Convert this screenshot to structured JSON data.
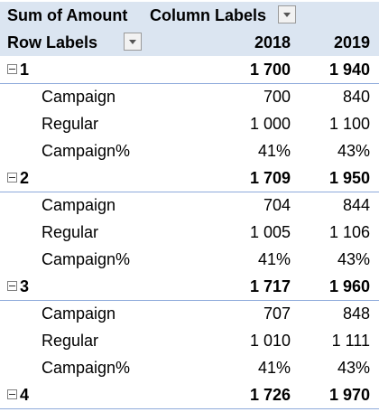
{
  "pivot": {
    "value_field": "Sum of Amount",
    "column_labels": "Column Labels",
    "row_labels": "Row Labels",
    "columns": [
      "2018",
      "2019"
    ]
  },
  "groups": [
    {
      "label": "1",
      "total": [
        "1 700",
        "1 940"
      ],
      "rows": [
        {
          "label": "Campaign",
          "values": [
            "700",
            "840"
          ]
        },
        {
          "label": "Regular",
          "values": [
            "1 000",
            "1 100"
          ]
        },
        {
          "label": "Campaign%",
          "values": [
            "41%",
            "43%"
          ]
        }
      ]
    },
    {
      "label": "2",
      "total": [
        "1 709",
        "1 950"
      ],
      "rows": [
        {
          "label": "Campaign",
          "values": [
            "704",
            "844"
          ]
        },
        {
          "label": "Regular",
          "values": [
            "1 005",
            "1 106"
          ]
        },
        {
          "label": "Campaign%",
          "values": [
            "41%",
            "43%"
          ]
        }
      ]
    },
    {
      "label": "3",
      "total": [
        "1 717",
        "1 960"
      ],
      "rows": [
        {
          "label": "Campaign",
          "values": [
            "707",
            "848"
          ]
        },
        {
          "label": "Regular",
          "values": [
            "1 010",
            "1 111"
          ]
        },
        {
          "label": "Campaign%",
          "values": [
            "41%",
            "43%"
          ]
        }
      ]
    },
    {
      "label": "4",
      "total": [
        "1 726",
        "1 970"
      ],
      "rows": []
    }
  ]
}
